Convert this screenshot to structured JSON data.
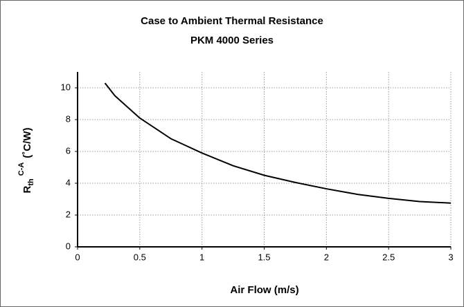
{
  "chart_data": {
    "type": "line",
    "title": "Case to Ambient Thermal Resistance",
    "subtitle": "PKM 4000 Series",
    "xlabel": "Air Flow (m/s)",
    "ylabel": {
      "base": "R",
      "sub": "th",
      "sup": "C-A",
      "unit": "(˚C/W)"
    },
    "x": [
      0.22,
      0.3,
      0.5,
      0.75,
      1.0,
      1.25,
      1.5,
      1.75,
      2.0,
      2.25,
      2.5,
      2.75,
      3.0
    ],
    "series": [
      {
        "color": "#000000",
        "values": [
          10.3,
          9.5,
          8.1,
          6.8,
          5.9,
          5.1,
          4.5,
          4.05,
          3.65,
          3.3,
          3.05,
          2.85,
          2.75
        ]
      }
    ],
    "xlim": [
      0,
      3
    ],
    "xticks": [
      0,
      0.5,
      1,
      1.5,
      2,
      2.5,
      3
    ],
    "ylim": [
      0,
      11
    ],
    "yticks": [
      0,
      2,
      4,
      6,
      8,
      10
    ],
    "grid": true
  }
}
